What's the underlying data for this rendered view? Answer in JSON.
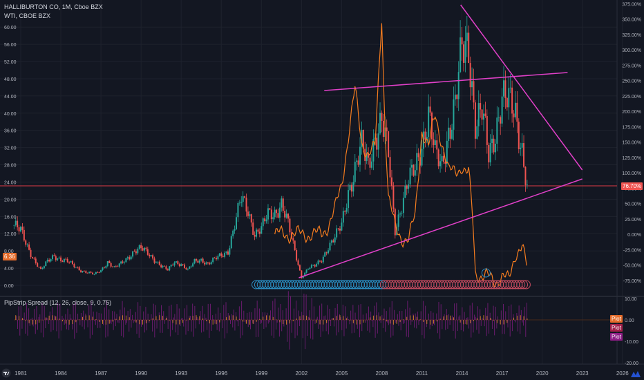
{
  "legend": {
    "main_series": "HALLIBURTON CO, 1M, Cboe BZX",
    "overlay_series": "WTI, CBOE BZX",
    "oscillator": "PipStrip Spread (12, 26, close, 9, 0.75)"
  },
  "price_tags": {
    "last_price": "6.36",
    "overlay_percent": "76.70%"
  },
  "osc_tags": [
    "Plot",
    "Plot",
    "Plot"
  ],
  "colors": {
    "background": "#131722",
    "grid": "#1e222d",
    "up_candle": "#26a69a",
    "down_candle": "#ef5350",
    "overlay_line": "#f57c1f",
    "trendline": "#e040c8",
    "hline": "#b7343f",
    "osc_purple": "#6a1b6e",
    "osc_orange": "#c8782e",
    "bubble_blue": "#2a8fc4",
    "bubble_red": "#c24a5e"
  },
  "chart_data": {
    "type": "line",
    "title": "HALLIBURTON CO, 1M, Cboe BZX",
    "x_ticks": [
      "1981",
      "1984",
      "1987",
      "1990",
      "1993",
      "1996",
      "1999",
      "2002",
      "2005",
      "2008",
      "2011",
      "2014",
      "2017",
      "2020",
      "2023",
      "2026"
    ],
    "left_axis_ticks": [
      "60.00",
      "56.00",
      "52.00",
      "48.00",
      "44.00",
      "40.00",
      "36.00",
      "32.00",
      "28.00",
      "24.00",
      "20.00",
      "16.00",
      "12.00",
      "8.00",
      "4.00",
      "0.00"
    ],
    "right_axis_ticks": [
      "375.00%",
      "350.00%",
      "325.00%",
      "300.00%",
      "275.00%",
      "250.00%",
      "225.00%",
      "200.00%",
      "175.00%",
      "150.00%",
      "125.00%",
      "100.00%",
      "75.00%",
      "50.00%",
      "25.00%",
      "0.00%",
      "-25.00%",
      "-50.00%",
      "-75.00%"
    ],
    "osc_axis_ticks": [
      "10.00",
      "0.00",
      "-10.00",
      "-20.00"
    ],
    "series": [
      {
        "name": "HALLIBURTON CO",
        "x": [
          1980.5,
          1981.0,
          1981.5,
          1982.0,
          1982.5,
          1983.0,
          1983.5,
          1984.0,
          1984.5,
          1985.0,
          1985.5,
          1986.0,
          1986.5,
          1987.0,
          1987.5,
          1988.0,
          1988.5,
          1989.0,
          1989.5,
          1990.0,
          1990.5,
          1991.0,
          1991.5,
          1992.0,
          1992.5,
          1993.0,
          1993.5,
          1994.0,
          1994.5,
          1995.0,
          1995.5,
          1996.0,
          1996.5,
          1997.0,
          1997.5,
          1998.0,
          1998.5,
          1999.0,
          1999.5,
          2000.0,
          2000.5,
          2001.0,
          2001.5,
          2002.0,
          2002.5,
          2003.0,
          2003.5,
          2004.0,
          2004.5,
          2005.0,
          2005.5,
          2006.0,
          2006.5,
          2007.0,
          2007.5,
          2008.0,
          2008.5,
          2009.0,
          2009.5,
          2010.0,
          2010.5,
          2011.0,
          2011.5,
          2012.0,
          2012.5,
          2013.0,
          2013.5,
          2014.0,
          2014.5,
          2015.0,
          2015.5,
          2016.0,
          2016.5,
          2017.0,
          2017.5,
          2018.0,
          2018.5,
          2018.9
        ],
        "values": [
          14.0,
          12.5,
          9.0,
          6.0,
          3.5,
          5.5,
          7.0,
          6.0,
          5.5,
          4.5,
          3.5,
          3.0,
          2.5,
          3.5,
          5.5,
          4.0,
          5.0,
          6.5,
          8.0,
          8.5,
          7.5,
          6.0,
          4.5,
          3.5,
          5.5,
          5.0,
          3.5,
          5.5,
          6.0,
          5.0,
          6.0,
          7.0,
          8.0,
          14.0,
          20.0,
          17.5,
          12.0,
          13.0,
          16.5,
          17.0,
          19.0,
          14.0,
          8.0,
          1.8,
          4.0,
          4.5,
          6.0,
          9.0,
          11.0,
          14.0,
          22.0,
          27.0,
          32.0,
          28.0,
          35.0,
          38.0,
          30.0,
          13.0,
          19.0,
          24.0,
          27.0,
          33.0,
          40.0,
          30.0,
          28.0,
          36.0,
          42.0,
          54.0,
          56.0,
          38.0,
          40.0,
          30.0,
          36.0,
          44.0,
          42.0,
          40.0,
          32.0,
          22.0
        ]
      },
      {
        "name": "WTI",
        "x": [
          2000.0,
          2003.5,
          2004.0,
          2004.5,
          2005.0,
          2005.5,
          2006.0,
          2006.5,
          2007.0,
          2007.5,
          2008.0,
          2008.2,
          2008.5,
          2009.0,
          2009.5,
          2010.0,
          2010.5,
          2011.0,
          2011.5,
          2012.0,
          2012.5,
          2013.0,
          2013.5,
          2014.0,
          2014.3,
          2014.5,
          2014.8,
          2015.0,
          2015.5,
          2016.0,
          2016.5,
          2017.0,
          2017.5,
          2018.0,
          2018.5,
          2018.9
        ],
        "values": [
          0,
          0,
          15,
          40,
          80,
          160,
          235,
          150,
          130,
          140,
          355,
          200,
          60,
          10,
          -5,
          -10,
          30,
          170,
          140,
          195,
          150,
          100,
          105,
          110,
          95,
          100,
          30,
          -60,
          -70,
          -70,
          -75,
          -70,
          -75,
          -30,
          -20,
          -60
        ]
      }
    ]
  }
}
